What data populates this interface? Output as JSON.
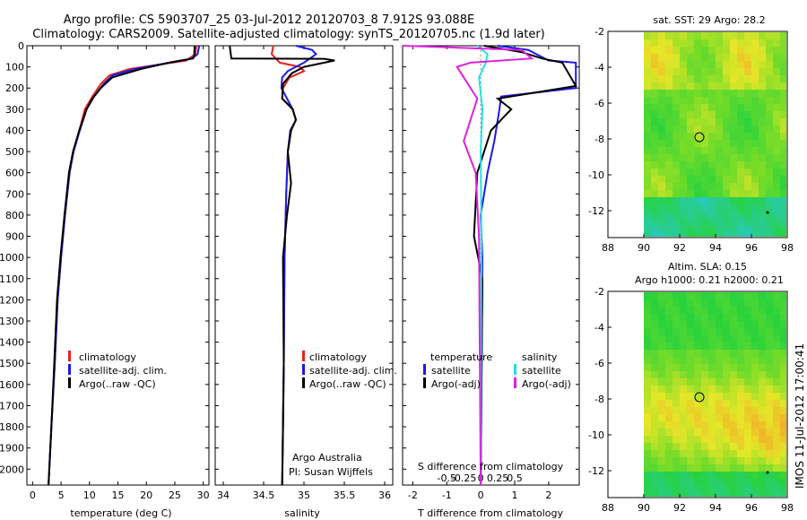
{
  "figure": {
    "title_line1": "Argo profile: CS 5903707_25 03-Jul-2012 20120703_8 7.912S 93.088E",
    "title_line2": "Climatology: CARS2009. Satellite-adjusted climatology: synTS_20120705.nc (1.9d later)",
    "footer_vertical": "IMOS 11-Jul-2012 17:00:41",
    "colors": {
      "climatology": "#e8201a",
      "satellite": "#1a1ae8",
      "argo": "#000000",
      "cyan": "#22e0e0",
      "magenta": "#e020e0"
    }
  },
  "chart_data": [
    {
      "id": "temperature",
      "type": "line",
      "xlabel": "temperature (deg C)",
      "ylabel": "",
      "xlim": [
        -1,
        31
      ],
      "ylim": [
        2075,
        0
      ],
      "xticks": [
        "0",
        "5",
        "10",
        "15",
        "20",
        "25",
        "30"
      ],
      "yticks": [
        "0",
        "100",
        "200",
        "300",
        "400",
        "500",
        "600",
        "700",
        "800",
        "900",
        "1000",
        "1100",
        "1200",
        "1300",
        "1400",
        "1500",
        "1600",
        "1700",
        "1800",
        "1900",
        "2000"
      ],
      "legend": [
        "climatology",
        "satellite-adj. clim.",
        "Argo(..raw -QC)"
      ],
      "series": [
        {
          "name": "climatology",
          "color": "#e8201a",
          "x": [
            28.8,
            28.6,
            27,
            22,
            17,
            13.5,
            12,
            10.5,
            9.2,
            8.2,
            7.2,
            6.5,
            5.7,
            5,
            4.4,
            3.9,
            3.3,
            2.8
          ],
          "y": [
            0,
            40,
            70,
            90,
            110,
            140,
            180,
            240,
            300,
            400,
            500,
            600,
            800,
            1000,
            1200,
            1500,
            1800,
            2075
          ]
        },
        {
          "name": "satellite-adj. clim.",
          "color": "#1a1ae8",
          "x": [
            29.3,
            29,
            28,
            23,
            18,
            14,
            12.5,
            10.8,
            9.5,
            8.3,
            7.2,
            6.5,
            5.7,
            5,
            4.4,
            3.9,
            3.3,
            2.8
          ],
          "y": [
            0,
            40,
            60,
            85,
            110,
            140,
            180,
            240,
            300,
            400,
            500,
            600,
            800,
            1000,
            1200,
            1500,
            1800,
            2075
          ]
        },
        {
          "name": "Argo(..raw -QC)",
          "color": "#000000",
          "x": [
            28.5,
            28.4,
            28.2,
            24,
            19,
            14,
            12,
            10.5,
            9.5,
            8.2,
            7.1,
            6.4,
            5.6,
            4.9,
            4.3,
            3.8,
            3.3,
            2.8
          ],
          "y": [
            0,
            50,
            60,
            80,
            110,
            150,
            200,
            250,
            300,
            400,
            500,
            600,
            800,
            1000,
            1200,
            1500,
            1800,
            2075
          ]
        }
      ]
    },
    {
      "id": "salinity",
      "type": "line",
      "xlabel": "salinity",
      "ylabel": "",
      "xlim": [
        33.9,
        36.1
      ],
      "ylim": [
        2075,
        0
      ],
      "xticks": [
        "34",
        "34.5",
        "35",
        "35.5",
        "36"
      ],
      "legend": [
        "climatology",
        "satellite-adj. clim.",
        "Argo(..raw -QC)"
      ],
      "annotation": [
        "Argo Australia",
        "PI: Susan Wijffels"
      ],
      "series": [
        {
          "name": "climatology",
          "color": "#e8201a",
          "x": [
            34.62,
            34.6,
            34.65,
            34.7,
            34.95,
            35.0,
            34.82,
            34.74,
            34.73,
            34.86,
            34.9,
            34.84,
            34.8,
            34.78,
            34.76,
            34.75,
            34.74,
            34.73
          ],
          "y": [
            0,
            40,
            60,
            80,
            100,
            120,
            150,
            200,
            250,
            300,
            350,
            400,
            500,
            700,
            1000,
            1500,
            1800,
            2075
          ]
        },
        {
          "name": "satellite-adj. clim.",
          "color": "#1a1ae8",
          "x": [
            34.9,
            35.1,
            35.15,
            35.0,
            34.8,
            34.73,
            34.72,
            34.86,
            34.9,
            34.83,
            34.8,
            34.78,
            34.76,
            34.75,
            34.74,
            34.73
          ],
          "y": [
            0,
            20,
            40,
            80,
            120,
            150,
            200,
            300,
            350,
            400,
            500,
            700,
            1000,
            1500,
            1800,
            2075
          ]
        },
        {
          "name": "Argo(..raw -QC)",
          "color": "#000000",
          "x": [
            34.08,
            34.1,
            35.25,
            35.38,
            35.0,
            34.85,
            34.74,
            34.73,
            34.86,
            34.9,
            34.84,
            34.8,
            34.84,
            34.79,
            34.74,
            34.75,
            34.74,
            34.73
          ],
          "y": [
            0,
            60,
            62,
            70,
            100,
            130,
            180,
            250,
            300,
            350,
            400,
            500,
            650,
            800,
            1000,
            1500,
            1800,
            2075
          ]
        }
      ]
    },
    {
      "id": "difference",
      "type": "line",
      "xlabel": "T difference from climatology",
      "xlabel_top": "S difference from climatology",
      "xlim": [
        -2.3,
        2.9
      ],
      "ylim": [
        2075,
        0
      ],
      "xticks": [
        "-2",
        "-1",
        "0",
        "1",
        "2"
      ],
      "xticks_s": [
        "-0.5",
        "-0.25",
        "0",
        "0.25",
        "0.5"
      ],
      "legend_headers": [
        "temperature",
        "salinity"
      ],
      "legend": [
        "satellite",
        "Argo(-adj)",
        "satellite",
        "Argo(-adj)"
      ],
      "series": [
        {
          "name": "satellite",
          "color": "#1a1ae8",
          "x": [
            0.5,
            1.4,
            2.0,
            2.8,
            2.8,
            0.6,
            0.55,
            0.4,
            0.2,
            0.0,
            0.05,
            0.0
          ],
          "y": [
            0,
            20,
            70,
            80,
            200,
            240,
            300,
            450,
            600,
            800,
            1000,
            2075
          ]
        },
        {
          "name": "Argo(-adj)",
          "color": "#000000",
          "x": [
            0.1,
            1.2,
            1.8,
            2.4,
            2.8,
            0.5,
            0.9,
            0.3,
            -0.1,
            -0.2,
            0.05,
            0.0
          ],
          "y": [
            0,
            30,
            60,
            80,
            190,
            250,
            300,
            400,
            600,
            900,
            1100,
            2075
          ]
        },
        {
          "name": "satellite",
          "color": "#22e0e0",
          "x": [
            -0.1,
            0.2,
            0.15,
            -0.05,
            0.05,
            0.0,
            0.02,
            0.0
          ],
          "y": [
            0,
            40,
            80,
            150,
            300,
            500,
            900,
            2075
          ]
        },
        {
          "name": "Argo(-adj)",
          "color": "#e020e0",
          "x": [
            -2.3,
            1.2,
            1.5,
            -0.3,
            -0.7,
            -0.1,
            -0.5,
            -0.15,
            -0.05,
            0.0
          ],
          "y": [
            0,
            20,
            60,
            80,
            100,
            250,
            450,
            600,
            900,
            2075
          ]
        }
      ]
    },
    {
      "id": "sst_map",
      "type": "heatmap",
      "title": "sat. SST: 29 Argo: 28.2",
      "xlim": [
        88,
        98
      ],
      "ylim": [
        -13.5,
        -2
      ],
      "xticks": [
        "88",
        "90",
        "92",
        "94",
        "96",
        "98"
      ],
      "yticks": [
        "-2",
        "-4",
        "-6",
        "-8",
        "-10",
        "-12"
      ],
      "marker_circle": [
        93.1,
        -7.9
      ],
      "marker_dot": [
        96.9,
        -12.1
      ]
    },
    {
      "id": "sla_map",
      "type": "heatmap",
      "title_line1": "Altim. SLA: 0.15",
      "title_line2": "Argo h1000: 0.21 h2000: 0.21",
      "xlim": [
        88,
        98
      ],
      "ylim": [
        -13.5,
        -2
      ],
      "xticks": [
        "88",
        "90",
        "92",
        "94",
        "96",
        "98"
      ],
      "yticks": [
        "-2",
        "-4",
        "-6",
        "-8",
        "-10",
        "-12"
      ],
      "marker_circle": [
        93.1,
        -7.9
      ],
      "marker_dot": [
        96.9,
        -12.1
      ]
    }
  ]
}
